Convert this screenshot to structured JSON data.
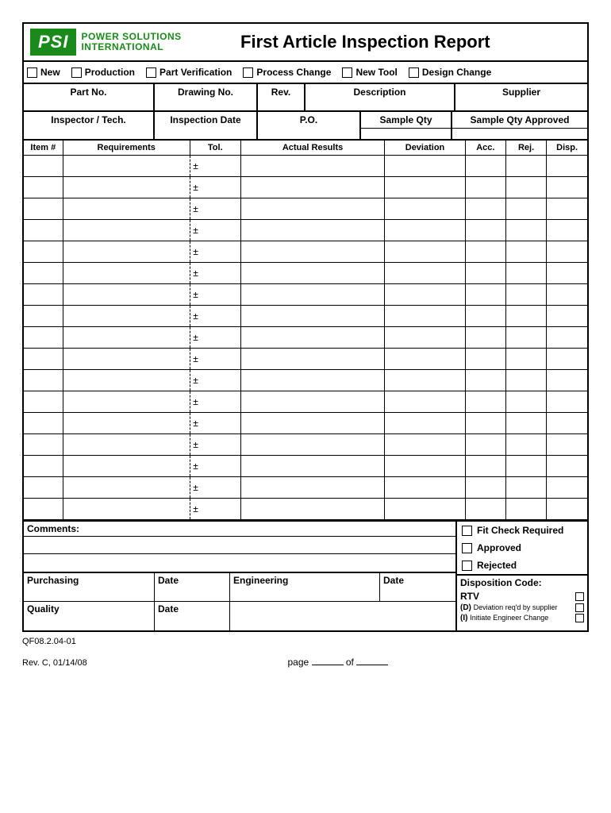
{
  "logo": {
    "badge": "PSI",
    "line1": "POWER SOLUTIONS",
    "line2": "INTERNATIONAL",
    "badge_bg": "#1a8a1a",
    "text_color": "#1a8a1a"
  },
  "title": "First Article Inspection Report",
  "checkboxes": [
    {
      "label": "New"
    },
    {
      "label": "Production"
    },
    {
      "label": "Part Verification"
    },
    {
      "label": "Process Change"
    },
    {
      "label": "New Tool"
    },
    {
      "label": "Design Change"
    }
  ],
  "info_row1": {
    "part_no": "Part No.",
    "drawing_no": "Drawing No.",
    "rev": "Rev.",
    "description": "Description",
    "supplier": "Supplier"
  },
  "info_row2": {
    "inspector": "Inspector / Tech.",
    "inspection_date": "Inspection Date",
    "po": "P.O.",
    "sample_qty": "Sample Qty",
    "sample_qty_approved": "Sample Qty Approved"
  },
  "table": {
    "headers": {
      "item": "Item #",
      "requirements": "Requirements",
      "tol": "Tol.",
      "actual_results": "Actual Results",
      "deviation": "Deviation",
      "acc": "Acc.",
      "rej": "Rej.",
      "disp": "Disp."
    },
    "tol_symbol": "±",
    "row_count": 17,
    "col_widths": {
      "item": 46,
      "requirements": 150,
      "tol": 60,
      "actual_results": 170,
      "deviation": 95,
      "acc": 48,
      "rej": 48,
      "disp": 48
    }
  },
  "comments_label": "Comments:",
  "status": {
    "fit_check": "Fit Check Required",
    "approved": "Approved",
    "rejected": "Rejected"
  },
  "signatures": {
    "purchasing": "Purchasing",
    "date": "Date",
    "engineering": "Engineering",
    "quality": "Quality"
  },
  "disposition": {
    "header": "Disposition Code:",
    "rtv": "RTV",
    "d_code": "(D)",
    "d_text": "Deviation req'd by supplier",
    "i_code": "(I)",
    "i_text": "Initiate Engineer Change"
  },
  "footer": {
    "form_id": "QF08.2.04-01",
    "revision": "Rev. C, 01/14/08",
    "page_label": "page",
    "of_label": "of"
  }
}
